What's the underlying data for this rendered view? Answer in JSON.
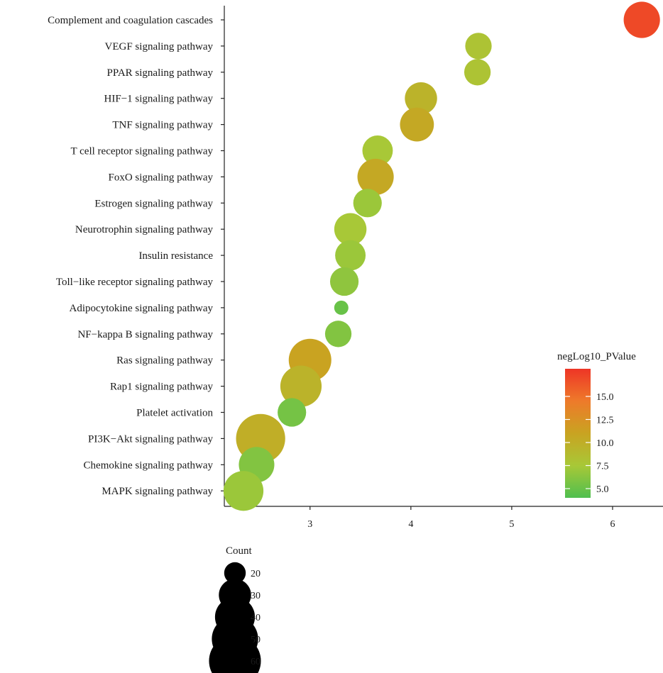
{
  "chart_data": {
    "type": "scatter",
    "title": "",
    "xlabel": "",
    "ylabel": "",
    "xlim": [
      2.15,
      6.5
    ],
    "xticks": [
      3,
      4,
      5,
      6
    ],
    "grid": false,
    "categories": [
      "Complement and coagulation cascades",
      "VEGF signaling pathway",
      "PPAR signaling pathway",
      "HIF−1 signaling pathway",
      "TNF signaling pathway",
      "T cell receptor signaling pathway",
      "FoxO signaling pathway",
      "Estrogen signaling pathway",
      "Neurotrophin signaling pathway",
      "Insulin resistance",
      "Toll−like receptor signaling pathway",
      "Adipocytokine signaling pathway",
      "NF−kappa B signaling pathway",
      "Ras signaling pathway",
      "Rap1 signaling pathway",
      "Platelet activation",
      "PI3K−Akt signaling pathway",
      "Chemokine signaling pathway",
      "MAPK signaling pathway"
    ],
    "x": [
      6.29,
      4.67,
      4.66,
      4.1,
      4.06,
      3.67,
      3.65,
      3.57,
      3.4,
      3.4,
      3.34,
      3.31,
      3.28,
      3.0,
      2.91,
      2.82,
      2.51,
      2.47,
      2.34
    ],
    "count": [
      35,
      24,
      24,
      30,
      32,
      28,
      35,
      26,
      30,
      28,
      26,
      16,
      24,
      44,
      42,
      26,
      55,
      34,
      40
    ],
    "negLog10_PValue": [
      17.0,
      8.0,
      8.0,
      9.5,
      10.5,
      7.5,
      10.5,
      7.0,
      7.5,
      7.0,
      6.5,
      5.0,
      6.0,
      11.0,
      9.5,
      5.5,
      10.0,
      6.0,
      7.0
    ],
    "color_legend": {
      "title": "negLog10_PValue",
      "range": [
        4,
        18
      ],
      "ticks": [
        5.0,
        7.5,
        10.0,
        12.5,
        15.0
      ],
      "tick_labels": [
        "5.0",
        "7.5",
        "10.0",
        "12.5",
        "15.0"
      ],
      "colors": [
        "#4fbf4f",
        "#a8c837",
        "#c9a321",
        "#ee7a2a",
        "#ee3526"
      ]
    },
    "size_legend": {
      "title": "Count",
      "values": [
        20,
        30,
        40,
        50,
        60
      ],
      "labels": [
        "20",
        "30",
        "40",
        "50",
        "60"
      ],
      "color": "#000000"
    },
    "legend_position": "right"
  }
}
